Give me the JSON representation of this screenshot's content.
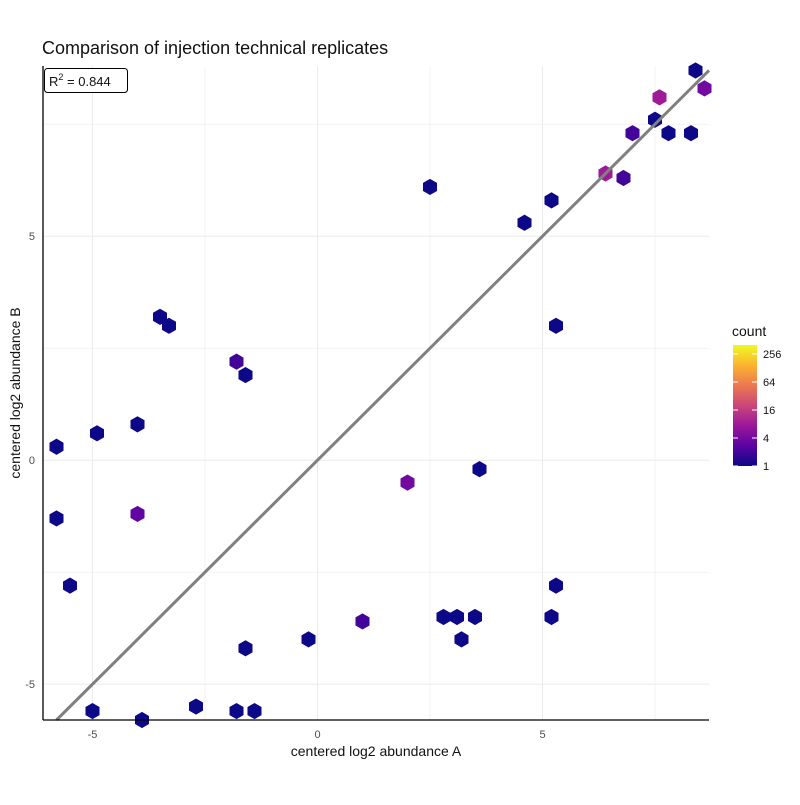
{
  "chart_data": {
    "type": "hexbin",
    "title": "Comparison of injection technical replicates",
    "xlabel": "centered log2 abundance A",
    "ylabel": "centered log2 abundance B",
    "annotation": {
      "r2_prefix": "R",
      "r2_superscript": "2",
      "r2_suffix": " = 0.844",
      "placement": "top-left"
    },
    "xlim": [
      -6.1,
      8.7
    ],
    "ylim": [
      -5.8,
      8.8
    ],
    "xticks": [
      -5,
      0,
      5
    ],
    "yticks": [
      -5,
      0,
      5
    ],
    "x_tick_labels": [
      "-5",
      "0",
      "5"
    ],
    "y_tick_labels": [
      "-5",
      "0",
      "5"
    ],
    "grid": true,
    "fit_line": {
      "slope": 1.0,
      "intercept": 0.0,
      "color": "#808080"
    },
    "legend": {
      "title": "count",
      "placement": "right",
      "scale": "log2",
      "breaks": [
        1,
        4,
        16,
        64,
        256
      ],
      "labels": [
        "1",
        "4",
        "16",
        "64",
        "256"
      ],
      "min": 1,
      "max": 400
    },
    "colormap": [
      "#0d0887",
      "#5b02a3",
      "#9a179b",
      "#cb4678",
      "#eb7852",
      "#fbb32f",
      "#f0f921"
    ],
    "hex_counts": [
      {
        "x": 2.5,
        "y": 6.1,
        "count": 1
      },
      {
        "x": -4.9,
        "y": 0.6,
        "count": 1
      },
      {
        "x": -5.8,
        "y": 0.3,
        "count": 1
      },
      {
        "x": -3.5,
        "y": 3.2,
        "count": 1
      },
      {
        "x": -3.3,
        "y": 3.0,
        "count": 1
      },
      {
        "x": -1.8,
        "y": 2.2,
        "count": 2
      },
      {
        "x": -1.6,
        "y": 1.9,
        "count": 1
      },
      {
        "x": -4.0,
        "y": 0.8,
        "count": 1
      },
      {
        "x": -4.0,
        "y": -1.2,
        "count": 3
      },
      {
        "x": -5.8,
        "y": -1.3,
        "count": 1
      },
      {
        "x": -5.5,
        "y": -2.8,
        "count": 1
      },
      {
        "x": -5.0,
        "y": -5.6,
        "count": 1
      },
      {
        "x": -3.9,
        "y": -5.8,
        "count": 1
      },
      {
        "x": -2.7,
        "y": -5.5,
        "count": 1
      },
      {
        "x": -1.8,
        "y": -5.6,
        "count": 1
      },
      {
        "x": -1.4,
        "y": -5.6,
        "count": 1
      },
      {
        "x": -1.6,
        "y": -4.2,
        "count": 1
      },
      {
        "x": -0.2,
        "y": -4.0,
        "count": 1
      },
      {
        "x": 1.0,
        "y": -3.6,
        "count": 2
      },
      {
        "x": 2.8,
        "y": -3.5,
        "count": 1
      },
      {
        "x": 3.1,
        "y": -3.5,
        "count": 1
      },
      {
        "x": 3.5,
        "y": -3.5,
        "count": 1
      },
      {
        "x": 3.2,
        "y": -4.0,
        "count": 1
      },
      {
        "x": 5.3,
        "y": -2.8,
        "count": 1
      },
      {
        "x": 5.2,
        "y": -3.5,
        "count": 1
      },
      {
        "x": 3.6,
        "y": -0.2,
        "count": 1
      },
      {
        "x": 2.0,
        "y": -0.5,
        "count": 4
      },
      {
        "x": 6.4,
        "y": 6.4,
        "count": 8
      },
      {
        "x": 6.8,
        "y": 6.3,
        "count": 2
      },
      {
        "x": 7.0,
        "y": 7.3,
        "count": 2
      },
      {
        "x": 7.5,
        "y": 7.6,
        "count": 1
      },
      {
        "x": 7.8,
        "y": 7.3,
        "count": 1
      },
      {
        "x": 8.3,
        "y": 7.3,
        "count": 1
      },
      {
        "x": 8.6,
        "y": 8.3,
        "count": 4
      },
      {
        "x": 8.4,
        "y": 8.7,
        "count": 1
      },
      {
        "x": 7.6,
        "y": 8.1,
        "count": 8
      },
      {
        "x": 5.3,
        "y": 3.0,
        "count": 1
      },
      {
        "x": 4.6,
        "y": 5.3,
        "count": 1
      },
      {
        "x": 5.2,
        "y": 5.8,
        "count": 1
      }
    ]
  }
}
